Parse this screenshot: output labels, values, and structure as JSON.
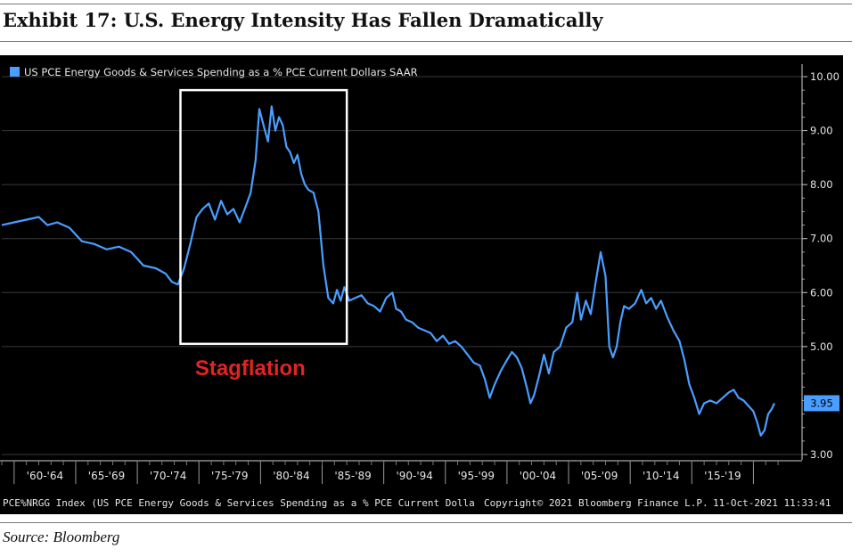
{
  "exhibit": {
    "title": "Exhibit 17: U.S. Energy Intensity Has Fallen Dramatically",
    "source": "Source: Bloomberg"
  },
  "colors": {
    "background": "#000000",
    "line": "#4a9eff",
    "grid": "#3a3a3a",
    "annotation_box": "#ffffff",
    "annotation_text": "#e02424",
    "last_value_bg": "#4a9eff"
  },
  "chart_data": {
    "type": "line",
    "title": "",
    "xlabel": "",
    "ylabel": "",
    "legend": "US PCE Energy Goods & Services Spending as a % PCE Current Dollars SAAR",
    "legend_position": "top-left",
    "ylim": [
      3.0,
      10.0
    ],
    "xlim": [
      1959.0,
      2022.5
    ],
    "yticks": [
      3.0,
      5.0,
      6.0,
      7.0,
      8.0,
      9.0,
      10.0
    ],
    "ytick_labels": [
      "3.00",
      "5.00",
      "6.00",
      "7.00",
      "8.00",
      "9.00",
      "10.00"
    ],
    "x_tick_positions": [
      1960,
      1965,
      1970,
      1975,
      1980,
      1985,
      1990,
      1995,
      2000,
      2005,
      2010,
      2015,
      2020
    ],
    "x_period_labels": [
      {
        "label": "'60-'64",
        "center": 1962.5
      },
      {
        "label": "'65-'69",
        "center": 1967.5
      },
      {
        "label": "'70-'74",
        "center": 1972.5
      },
      {
        "label": "'75-'79",
        "center": 1977.5
      },
      {
        "label": "'80-'84",
        "center": 1982.5
      },
      {
        "label": "'85-'89",
        "center": 1987.5
      },
      {
        "label": "'90-'94",
        "center": 1992.5
      },
      {
        "label": "'95-'99",
        "center": 1997.5
      },
      {
        "label": "'00-'04",
        "center": 2002.5
      },
      {
        "label": "'05-'09",
        "center": 2007.5
      },
      {
        "label": "'10-'14",
        "center": 2012.5
      },
      {
        "label": "'15-'19",
        "center": 2017.5
      }
    ],
    "last_value": 3.95,
    "last_value_label": "3.95",
    "series": [
      {
        "name": "US PCE Energy Goods & Services Spending as a % PCE Current Dollars SAAR",
        "x": [
          1959.0,
          1960.0,
          1961.0,
          1962.0,
          1962.7,
          1963.5,
          1964.5,
          1965.5,
          1966.5,
          1967.5,
          1968.5,
          1969.5,
          1970.5,
          1971.5,
          1972.3,
          1972.8,
          1973.3,
          1973.8,
          1974.3,
          1974.8,
          1975.3,
          1975.8,
          1976.3,
          1976.8,
          1977.3,
          1977.8,
          1978.3,
          1978.8,
          1979.2,
          1979.6,
          1979.9,
          1980.3,
          1980.6,
          1980.9,
          1981.2,
          1981.5,
          1981.8,
          1982.1,
          1982.4,
          1982.7,
          1983.0,
          1983.3,
          1983.6,
          1983.9,
          1984.3,
          1984.7,
          1985.1,
          1985.5,
          1985.9,
          1986.2,
          1986.5,
          1986.8,
          1987.2,
          1987.7,
          1988.2,
          1988.7,
          1989.2,
          1989.7,
          1990.2,
          1990.7,
          1991.0,
          1991.4,
          1991.8,
          1992.3,
          1992.8,
          1993.3,
          1993.8,
          1994.3,
          1994.8,
          1995.3,
          1995.8,
          1996.3,
          1996.8,
          1997.3,
          1997.8,
          1998.2,
          1998.6,
          1999.0,
          1999.5,
          2000.0,
          2000.4,
          2000.8,
          2001.2,
          2001.6,
          2001.9,
          2002.2,
          2002.6,
          2003.0,
          2003.4,
          2003.8,
          2004.3,
          2004.8,
          2005.3,
          2005.7,
          2006.0,
          2006.4,
          2006.8,
          2007.2,
          2007.6,
          2008.0,
          2008.3,
          2008.6,
          2008.9,
          2009.2,
          2009.5,
          2009.9,
          2010.4,
          2010.9,
          2011.3,
          2011.7,
          2012.1,
          2012.5,
          2013.0,
          2013.5,
          2014.0,
          2014.4,
          2014.8,
          2015.2,
          2015.6,
          2016.0,
          2016.5,
          2017.0,
          2017.5,
          2018.0,
          2018.4,
          2018.8,
          2019.2,
          2019.6,
          2020.0,
          2020.3,
          2020.6,
          2020.9,
          2021.2,
          2021.5,
          2021.7
        ],
        "y": [
          7.25,
          7.3,
          7.35,
          7.4,
          7.25,
          7.3,
          7.2,
          6.95,
          6.9,
          6.8,
          6.85,
          6.75,
          6.5,
          6.45,
          6.35,
          6.2,
          6.15,
          6.45,
          6.9,
          7.4,
          7.55,
          7.65,
          7.35,
          7.7,
          7.45,
          7.55,
          7.3,
          7.6,
          7.85,
          8.45,
          9.4,
          9.05,
          8.8,
          9.45,
          9.0,
          9.25,
          9.1,
          8.7,
          8.6,
          8.4,
          8.55,
          8.2,
          8.0,
          7.9,
          7.85,
          7.5,
          6.5,
          5.9,
          5.8,
          6.05,
          5.85,
          6.1,
          5.85,
          5.9,
          5.95,
          5.8,
          5.75,
          5.65,
          5.9,
          6.0,
          5.7,
          5.65,
          5.5,
          5.45,
          5.35,
          5.3,
          5.25,
          5.1,
          5.2,
          5.05,
          5.1,
          5.0,
          4.85,
          4.7,
          4.65,
          4.4,
          4.05,
          4.3,
          4.55,
          4.75,
          4.9,
          4.8,
          4.6,
          4.25,
          3.95,
          4.1,
          4.45,
          4.85,
          4.5,
          4.9,
          5.0,
          5.35,
          5.45,
          6.0,
          5.5,
          5.85,
          5.6,
          6.2,
          6.75,
          6.3,
          5.0,
          4.8,
          5.0,
          5.45,
          5.75,
          5.7,
          5.8,
          6.05,
          5.8,
          5.9,
          5.7,
          5.85,
          5.55,
          5.3,
          5.1,
          4.75,
          4.3,
          4.05,
          3.75,
          3.95,
          4.0,
          3.95,
          4.05,
          4.15,
          4.2,
          4.05,
          4.0,
          3.9,
          3.8,
          3.6,
          3.35,
          3.45,
          3.75,
          3.85,
          3.95
        ]
      }
    ]
  },
  "annotation": {
    "label": "Stagflation",
    "box_x_start": 1973.5,
    "box_x_end": 1987.0,
    "box_y_low": 5.05,
    "box_y_high": 9.75
  },
  "footer": {
    "ticker": "PCE%NRGG Index (US PCE Energy Goods & Services Spending as a % PCE Current Dolla",
    "copyright": "Copyright© 2021 Bloomberg Finance L.P.",
    "timestamp": "11-Oct-2021 11:33:41"
  }
}
